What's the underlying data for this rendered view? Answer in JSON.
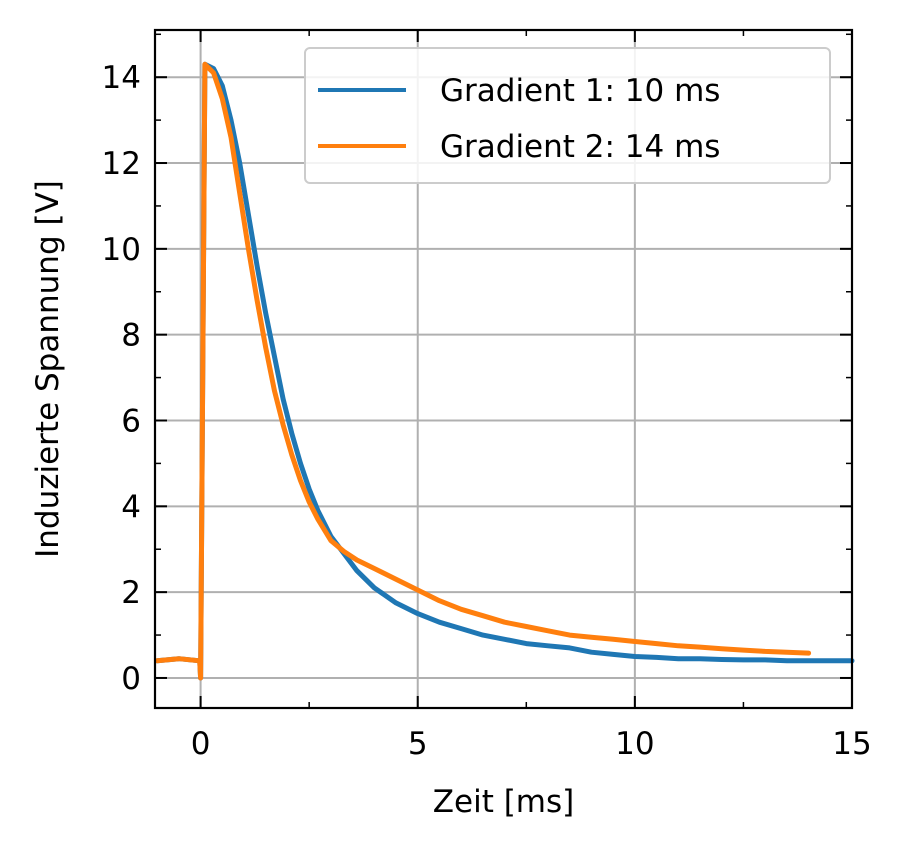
{
  "chart_data": {
    "type": "line",
    "xlabel": "Zeit [ms]",
    "ylabel": "Induzierte Spannung [V]",
    "xlim": [
      -1.05,
      15
    ],
    "ylim": [
      -0.7,
      15.1
    ],
    "xticks": [
      0,
      5,
      10,
      15
    ],
    "yticks": [
      0,
      2,
      4,
      6,
      8,
      10,
      12,
      14
    ],
    "x_minor_step": 2.5,
    "y_minor_step": 1,
    "grid": true,
    "tick_direction": "in",
    "legend_position": "top-right",
    "series": [
      {
        "name": "Gradient 1: 10 ms",
        "color": "#1f77b4",
        "x": [
          -1.0,
          -0.5,
          -0.02,
          0.0,
          0.1,
          0.3,
          0.5,
          0.7,
          0.9,
          1.1,
          1.3,
          1.5,
          1.7,
          1.9,
          2.1,
          2.3,
          2.5,
          2.7,
          3.0,
          3.3,
          3.6,
          4.0,
          4.5,
          5.0,
          5.5,
          6.0,
          6.5,
          7.0,
          7.5,
          8.0,
          8.5,
          9.0,
          9.5,
          10.0,
          10.5,
          11.0,
          11.5,
          12.0,
          12.5,
          13.0,
          13.5,
          14.0,
          14.5,
          15.0
        ],
        "y": [
          0.4,
          0.45,
          0.4,
          0.0,
          14.3,
          14.2,
          13.8,
          13.0,
          12.0,
          10.8,
          9.6,
          8.5,
          7.5,
          6.5,
          5.7,
          5.0,
          4.4,
          3.9,
          3.3,
          2.9,
          2.5,
          2.1,
          1.75,
          1.5,
          1.3,
          1.15,
          1.0,
          0.9,
          0.8,
          0.75,
          0.7,
          0.6,
          0.55,
          0.5,
          0.48,
          0.45,
          0.45,
          0.43,
          0.42,
          0.42,
          0.4,
          0.4,
          0.4,
          0.4
        ]
      },
      {
        "name": "Gradient 2: 14 ms",
        "color": "#ff7f0e",
        "x": [
          -1.0,
          -0.5,
          -0.02,
          0.0,
          0.1,
          0.3,
          0.5,
          0.7,
          0.9,
          1.1,
          1.3,
          1.5,
          1.7,
          1.9,
          2.1,
          2.3,
          2.5,
          2.7,
          3.0,
          3.3,
          3.6,
          4.0,
          4.5,
          5.0,
          5.5,
          6.0,
          6.5,
          7.0,
          7.5,
          8.0,
          8.5,
          9.0,
          9.5,
          10.0,
          10.5,
          11.0,
          11.5,
          12.0,
          12.5,
          13.0,
          13.5,
          14.0
        ],
        "y": [
          0.4,
          0.45,
          0.4,
          0.0,
          14.3,
          14.1,
          13.5,
          12.6,
          11.3,
          10.0,
          8.8,
          7.7,
          6.7,
          5.9,
          5.2,
          4.6,
          4.1,
          3.7,
          3.2,
          2.95,
          2.75,
          2.55,
          2.3,
          2.05,
          1.8,
          1.6,
          1.45,
          1.3,
          1.2,
          1.1,
          1.0,
          0.95,
          0.9,
          0.85,
          0.8,
          0.75,
          0.72,
          0.68,
          0.65,
          0.62,
          0.6,
          0.58
        ]
      }
    ]
  }
}
